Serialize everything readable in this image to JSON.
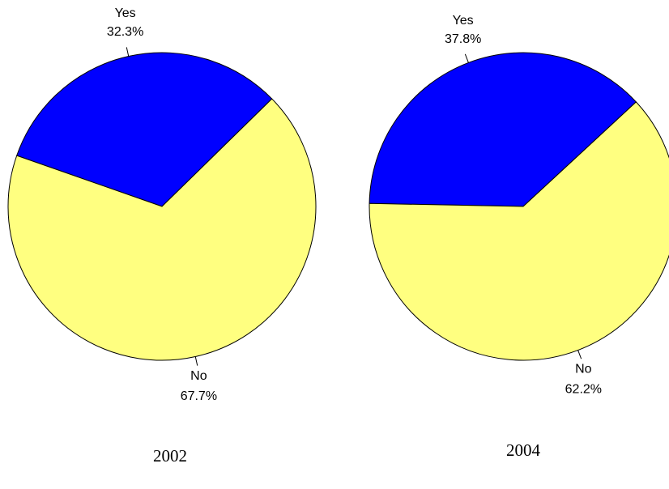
{
  "chart_data": [
    {
      "type": "pie",
      "title": "2002",
      "categories": [
        "Yes",
        "No"
      ],
      "values": [
        32.3,
        67.7
      ],
      "value_labels": [
        "32.3%",
        "67.7%"
      ],
      "colors": [
        "#0000ff",
        "#ffff80"
      ]
    },
    {
      "type": "pie",
      "title": "2004",
      "categories": [
        "Yes",
        "No"
      ],
      "values": [
        37.8,
        62.2
      ],
      "value_labels": [
        "37.8%",
        "62.2%"
      ],
      "colors": [
        "#0000ff",
        "#ffff80"
      ]
    }
  ]
}
